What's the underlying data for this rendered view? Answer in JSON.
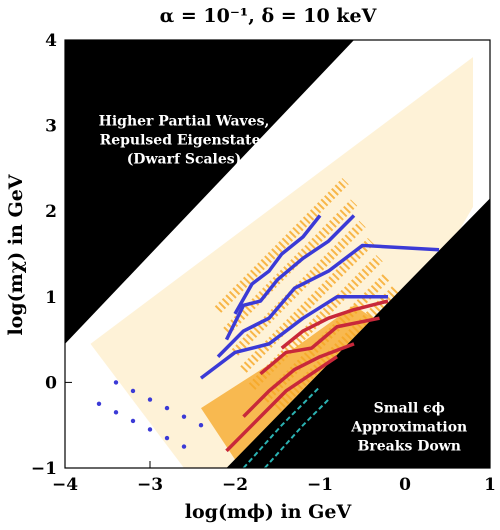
{
  "chart_data": {
    "type": "scatter",
    "title": "α = 10⁻¹,  δ = 10 keV",
    "xlabel": "log(mϕ) in GeV",
    "ylabel": "log(mχ) in GeV",
    "xlim": [
      -4,
      1
    ],
    "ylim": [
      -1,
      4
    ],
    "xticks": [
      {
        "value": -4,
        "label": "−4"
      },
      {
        "value": -3,
        "label": "−3"
      },
      {
        "value": -2,
        "label": "−2"
      },
      {
        "value": -1,
        "label": "−1"
      },
      {
        "value": 0,
        "label": "0"
      },
      {
        "value": 1,
        "label": "1"
      }
    ],
    "yticks": [
      {
        "value": -1,
        "label": "−1"
      },
      {
        "value": 0,
        "label": "0"
      },
      {
        "value": 1,
        "label": "1"
      },
      {
        "value": 2,
        "label": "2"
      },
      {
        "value": 3,
        "label": "3"
      },
      {
        "value": 4,
        "label": "4"
      }
    ],
    "regions": [
      {
        "name": "upper-excluded",
        "color": "#000000",
        "polygon": [
          [
            -4,
            0.45
          ],
          [
            -0.6,
            4
          ],
          [
            -4,
            4
          ]
        ]
      },
      {
        "name": "lower-excluded",
        "color": "#000000",
        "polygon": [
          [
            -2.1,
            -1
          ],
          [
            1,
            2.15
          ],
          [
            1,
            -1
          ]
        ]
      }
    ],
    "annotations": [
      {
        "lines": [
          "Higher Partial Waves,",
          "Repulsed Eigenstates",
          "(Dwarf Scales)"
        ],
        "x": -2.6,
        "y": 3.0
      },
      {
        "lines": [
          "Small ϵϕ",
          "Approximation",
          "Breaks Down"
        ],
        "x": 0.05,
        "y": -0.35
      }
    ],
    "series": [
      {
        "name": "orange",
        "color": "#f6a623",
        "bands": [
          {
            "x": [
              -2.2,
              -0.7
            ],
            "offset": 3.05
          },
          {
            "x": [
              -2.1,
              -0.6
            ],
            "offset": 2.7
          },
          {
            "x": [
              -2.0,
              -0.5
            ],
            "offset": 2.35
          },
          {
            "x": [
              -1.9,
              -0.4
            ],
            "offset": 2.05
          },
          {
            "x": [
              -1.8,
              -0.3
            ],
            "offset": 1.75
          },
          {
            "x": [
              -1.65,
              -0.2
            ],
            "offset": 1.45
          },
          {
            "x": [
              -1.5,
              -0.1
            ],
            "offset": 1.2
          }
        ]
      },
      {
        "name": "blue",
        "color": "#3b3ad6",
        "curves": [
          [
            [
              -2.0,
              0.8
            ],
            [
              -1.8,
              1.15
            ],
            [
              -1.6,
              1.3
            ],
            [
              -1.45,
              1.5
            ],
            [
              -1.2,
              1.7
            ],
            [
              -1.0,
              1.95
            ]
          ],
          [
            [
              -2.1,
              0.5
            ],
            [
              -1.9,
              0.9
            ],
            [
              -1.7,
              0.95
            ],
            [
              -1.5,
              1.2
            ],
            [
              -1.2,
              1.45
            ],
            [
              -0.9,
              1.65
            ],
            [
              -0.6,
              1.95
            ]
          ],
          [
            [
              -2.2,
              0.3
            ],
            [
              -1.9,
              0.6
            ],
            [
              -1.6,
              0.75
            ],
            [
              -1.3,
              1.1
            ],
            [
              -0.9,
              1.3
            ],
            [
              -0.5,
              1.6
            ],
            [
              0.4,
              1.55
            ]
          ],
          [
            [
              -2.4,
              0.05
            ],
            [
              -2.0,
              0.35
            ],
            [
              -1.6,
              0.45
            ],
            [
              -1.2,
              0.75
            ],
            [
              -0.8,
              1.0
            ],
            [
              -0.2,
              1.0
            ]
          ]
        ],
        "points": [
          [
            -3.6,
            -0.25
          ],
          [
            -3.4,
            -0.35
          ],
          [
            -3.2,
            -0.45
          ],
          [
            -3.0,
            -0.55
          ],
          [
            -2.8,
            -0.65
          ],
          [
            -2.6,
            -0.75
          ],
          [
            -3.4,
            0.0
          ],
          [
            -3.2,
            -0.1
          ],
          [
            -3.0,
            -0.2
          ],
          [
            -2.8,
            -0.3
          ],
          [
            -2.6,
            -0.4
          ],
          [
            -2.4,
            -0.5
          ]
        ]
      },
      {
        "name": "red",
        "color": "#c8283a",
        "curves": [
          [
            [
              -1.45,
              0.4
            ],
            [
              -1.2,
              0.6
            ],
            [
              -0.9,
              0.75
            ],
            [
              -0.6,
              0.85
            ],
            [
              -0.2,
              0.95
            ]
          ],
          [
            [
              -1.7,
              0.1
            ],
            [
              -1.4,
              0.35
            ],
            [
              -1.1,
              0.4
            ],
            [
              -0.8,
              0.65
            ],
            [
              -0.3,
              0.75
            ]
          ],
          [
            [
              -1.9,
              -0.4
            ],
            [
              -1.6,
              -0.1
            ],
            [
              -1.3,
              0.15
            ],
            [
              -1.0,
              0.3
            ],
            [
              -0.6,
              0.45
            ]
          ],
          [
            [
              -2.1,
              -0.8
            ],
            [
              -1.7,
              -0.4
            ],
            [
              -1.4,
              -0.1
            ],
            [
              -1.1,
              0.1
            ],
            [
              -0.8,
              0.3
            ]
          ]
        ]
      },
      {
        "name": "teal-dashed",
        "color": "#2bb3b3",
        "curves": [
          [
            [
              -1.9,
              -1.0
            ],
            [
              -1.45,
              -0.5
            ],
            [
              -1.0,
              -0.05
            ]
          ],
          [
            [
              -1.65,
              -1.0
            ],
            [
              -1.2,
              -0.5
            ],
            [
              -0.9,
              -0.2
            ]
          ]
        ]
      }
    ]
  }
}
